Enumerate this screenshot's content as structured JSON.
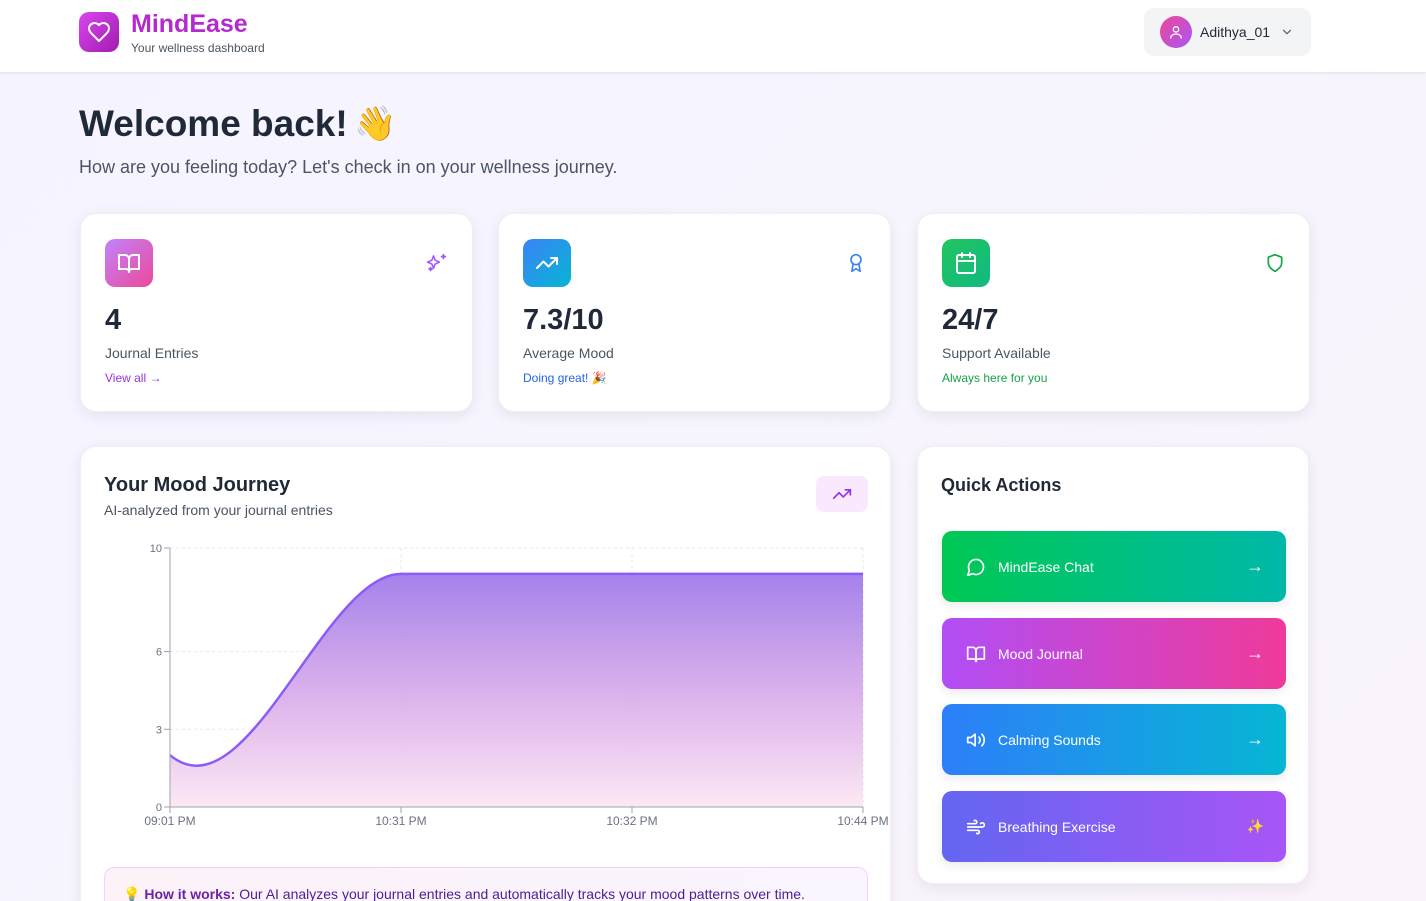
{
  "header": {
    "brand_name": "MindEase",
    "brand_tagline": "Your wellness dashboard",
    "user_name": "Adithya_01"
  },
  "welcome": {
    "title": "Welcome back!",
    "emoji": "👋",
    "subtitle": "How are you feeling today? Let's check in on your wellness journey."
  },
  "stats": [
    {
      "value": "4",
      "label": "Journal Entries",
      "link": "View all →",
      "icon": "book-icon",
      "corner_icon": "sparkles-icon",
      "color": "#9333ea"
    },
    {
      "value": "7.3/10",
      "label": "Average Mood",
      "link": "Doing great! 🎉",
      "icon": "trending-up-icon",
      "corner_icon": "award-icon",
      "color": "#2563eb"
    },
    {
      "value": "24/7",
      "label": "Support Available",
      "link": "Always here for you",
      "icon": "calendar-icon",
      "corner_icon": "shield-icon",
      "color": "#16a34a"
    }
  ],
  "mood": {
    "title": "Your Mood Journey",
    "subtitle": "AI-analyzed from your journal entries",
    "info_label": "How it works:",
    "info_text": " Our AI analyzes your journal entries and automatically tracks your mood patterns over time."
  },
  "chart_data": {
    "type": "area",
    "x": [
      "09:01 PM",
      "10:31 PM",
      "10:32 PM",
      "10:44 PM"
    ],
    "y": [
      2,
      9,
      9,
      9
    ],
    "ylim": [
      0,
      10
    ],
    "yticks": [
      0,
      3,
      6,
      10
    ],
    "grid": true,
    "line_color": "#8b5cf6"
  },
  "quick_actions": {
    "title": "Quick Actions",
    "items": [
      {
        "label": "MindEase Chat",
        "icon": "chat-icon",
        "trail": "→",
        "from": "#00c853",
        "to": "#00b8a9"
      },
      {
        "label": "Mood Journal",
        "icon": "book-icon",
        "trail": "→",
        "from": "#b14ef5",
        "to": "#ef3a9a"
      },
      {
        "label": "Calming Sounds",
        "icon": "speaker-icon",
        "trail": "→",
        "from": "#2d7ff9",
        "to": "#06b6d4"
      },
      {
        "label": "Breathing Exercise",
        "icon": "wind-icon",
        "trail": "✨",
        "from": "#6366f1",
        "to": "#a855f7"
      }
    ]
  }
}
